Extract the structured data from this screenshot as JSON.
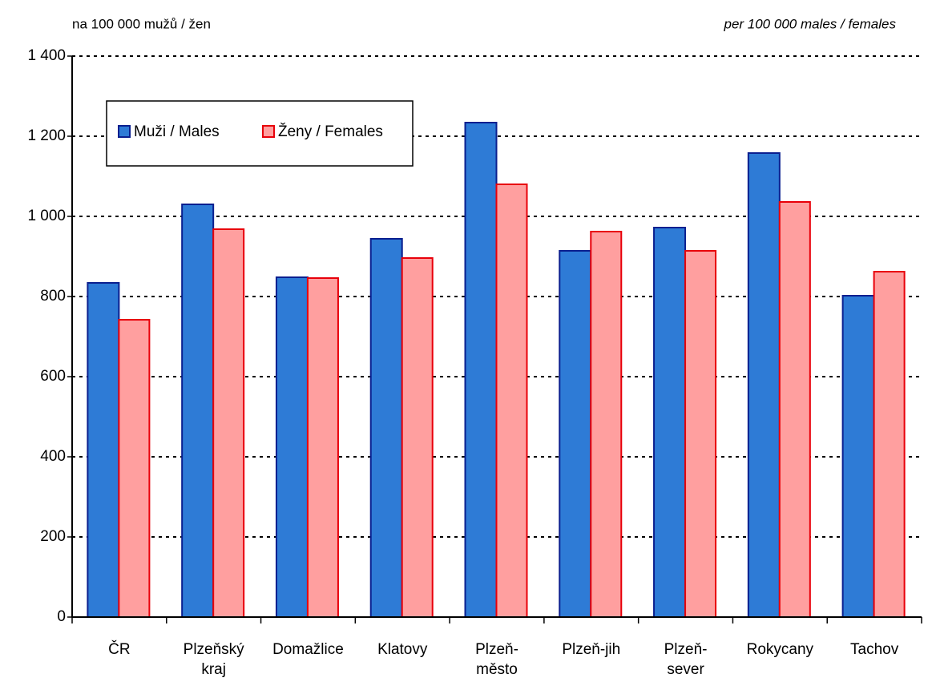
{
  "chart_data": {
    "type": "bar",
    "ylabel": "na 100 000 mužů / žen",
    "ylabel_en": "per 100 000 males /  females",
    "categories": [
      "ČR",
      "Plzeňský\nkraj",
      "Domažlice",
      "Klatovy",
      "Plzeň-\nměsto",
      "Plzeň-jih",
      "Plzeň-\nsever",
      "Rokycany",
      "Tachov"
    ],
    "series": [
      {
        "name": "Muži / Males",
        "color": "#2e7bd6",
        "values": [
          834,
          1030,
          848,
          944,
          1234,
          914,
          972,
          1158,
          802
        ]
      },
      {
        "name": "Ženy / Females",
        "color": "#ff9f9f",
        "values": [
          742,
          968,
          846,
          896,
          1080,
          962,
          914,
          1036,
          862
        ]
      }
    ],
    "ylim": [
      0,
      1400
    ],
    "yticks": [
      0,
      200,
      400,
      600,
      800,
      {
        "value": 1000,
        "label": "1 000"
      },
      {
        "value": 1200,
        "label": "1 200"
      },
      {
        "value": 1400,
        "label": "1 400"
      }
    ],
    "grid": true,
    "legend": "upper left"
  }
}
